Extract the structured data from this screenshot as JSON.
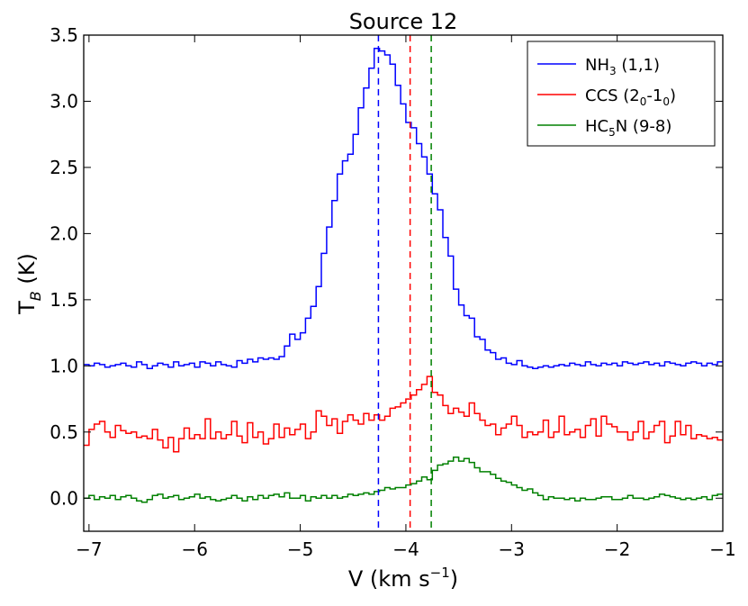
{
  "chart_data": {
    "type": "line",
    "title": "Source 12",
    "xlabel": "V (km s",
    "xlabel_sup": "−1",
    "xlabel_close": ")",
    "ylabel": "T",
    "ylabel_sub": "B",
    "ylabel_rest": " (K)",
    "xlim": [
      -7.05,
      -1.0
    ],
    "ylim": [
      -0.25,
      3.5
    ],
    "x_ticks": [
      -7,
      -6,
      -5,
      -4,
      -3,
      -2,
      -1
    ],
    "x_tick_labels": [
      "−7",
      "−6",
      "−5",
      "−4",
      "−3",
      "−2",
      "−1"
    ],
    "y_ticks": [
      0.0,
      0.5,
      1.0,
      1.5,
      2.0,
      2.5,
      3.0,
      3.5
    ],
    "y_tick_labels": [
      "0.0",
      "0.5",
      "1.0",
      "1.5",
      "2.0",
      "2.5",
      "3.0",
      "3.5"
    ],
    "grid": false,
    "legend_position": "top-right",
    "step": {
      "x_start": -7.05,
      "dx": 0.05
    },
    "series": [
      {
        "name": "NH3 (1,1)",
        "legend_main": "NH",
        "legend_sub": "3",
        "legend_rest": " (1,1)",
        "color": "#0000ff",
        "values": [
          1.01,
          1.0,
          1.02,
          1.01,
          0.99,
          1.0,
          1.01,
          1.02,
          1.0,
          0.99,
          1.03,
          1.01,
          0.98,
          1.0,
          1.02,
          1.01,
          0.99,
          1.03,
          1.0,
          1.01,
          1.02,
          0.99,
          1.03,
          1.02,
          1.0,
          1.03,
          1.01,
          1.0,
          0.99,
          1.04,
          1.02,
          1.05,
          1.03,
          1.06,
          1.05,
          1.06,
          1.05,
          1.07,
          1.15,
          1.24,
          1.2,
          1.25,
          1.36,
          1.45,
          1.6,
          1.85,
          2.05,
          2.25,
          2.45,
          2.55,
          2.6,
          2.75,
          2.95,
          3.1,
          3.25,
          3.4,
          3.38,
          3.35,
          3.28,
          3.12,
          2.98,
          2.84,
          2.8,
          2.68,
          2.58,
          2.45,
          2.3,
          2.18,
          1.97,
          1.83,
          1.58,
          1.46,
          1.38,
          1.36,
          1.22,
          1.2,
          1.12,
          1.1,
          1.05,
          1.06,
          1.02,
          1.01,
          1.04,
          1.0,
          0.99,
          0.98,
          0.99,
          1.0,
          0.99,
          1.0,
          1.01,
          1.0,
          1.02,
          1.01,
          1.0,
          1.03,
          1.01,
          1.0,
          1.02,
          1.01,
          1.02,
          1.0,
          1.03,
          1.02,
          1.01,
          1.02,
          1.03,
          1.01,
          1.02,
          1.0,
          1.03,
          1.02,
          1.01,
          1.0,
          1.02,
          1.03,
          1.02,
          1.0,
          1.02,
          1.01,
          1.03
        ]
      },
      {
        "name": "CCS (2_0-1_0)",
        "legend_main": "CCS (2",
        "legend_sub": "0",
        "legend_mid": "-1",
        "legend_sub2": "0",
        "legend_rest": ")",
        "color": "#ff0000",
        "values": [
          0.4,
          0.52,
          0.56,
          0.58,
          0.5,
          0.46,
          0.55,
          0.51,
          0.49,
          0.5,
          0.46,
          0.47,
          0.45,
          0.52,
          0.44,
          0.38,
          0.46,
          0.35,
          0.45,
          0.53,
          0.45,
          0.48,
          0.45,
          0.6,
          0.45,
          0.5,
          0.45,
          0.48,
          0.58,
          0.47,
          0.42,
          0.57,
          0.46,
          0.5,
          0.41,
          0.45,
          0.56,
          0.46,
          0.53,
          0.48,
          0.52,
          0.56,
          0.45,
          0.5,
          0.66,
          0.62,
          0.55,
          0.6,
          0.49,
          0.58,
          0.63,
          0.59,
          0.56,
          0.64,
          0.59,
          0.63,
          0.59,
          0.62,
          0.68,
          0.69,
          0.72,
          0.75,
          0.78,
          0.82,
          0.86,
          0.92,
          0.8,
          0.78,
          0.7,
          0.64,
          0.68,
          0.65,
          0.62,
          0.72,
          0.64,
          0.59,
          0.55,
          0.56,
          0.48,
          0.53,
          0.56,
          0.62,
          0.55,
          0.46,
          0.5,
          0.48,
          0.5,
          0.59,
          0.46,
          0.5,
          0.62,
          0.48,
          0.5,
          0.52,
          0.46,
          0.55,
          0.6,
          0.47,
          0.62,
          0.56,
          0.54,
          0.5,
          0.5,
          0.44,
          0.5,
          0.58,
          0.45,
          0.5,
          0.55,
          0.58,
          0.42,
          0.47,
          0.58,
          0.48,
          0.55,
          0.45,
          0.48,
          0.47,
          0.45,
          0.46,
          0.44
        ]
      },
      {
        "name": "HC5N (9-8)",
        "legend_main": "HC",
        "legend_sub": "5",
        "legend_rest": "N (9-8)",
        "color": "#008000",
        "values": [
          0.0,
          0.02,
          -0.01,
          0.01,
          0.0,
          0.02,
          -0.01,
          0.01,
          0.02,
          0.0,
          -0.02,
          -0.03,
          -0.01,
          0.02,
          0.03,
          0.0,
          0.01,
          0.02,
          -0.01,
          0.0,
          0.01,
          0.03,
          0.0,
          0.01,
          -0.01,
          -0.02,
          -0.01,
          0.0,
          0.02,
          0.0,
          -0.02,
          0.01,
          -0.01,
          0.02,
          0.0,
          0.02,
          0.03,
          0.01,
          0.04,
          0.0,
          0.0,
          0.02,
          -0.02,
          0.01,
          0.0,
          0.02,
          0.0,
          0.02,
          0.0,
          0.01,
          0.03,
          0.02,
          0.03,
          0.04,
          0.03,
          0.05,
          0.06,
          0.08,
          0.07,
          0.08,
          0.08,
          0.1,
          0.11,
          0.13,
          0.16,
          0.14,
          0.21,
          0.25,
          0.26,
          0.28,
          0.31,
          0.28,
          0.3,
          0.27,
          0.23,
          0.2,
          0.2,
          0.18,
          0.15,
          0.13,
          0.12,
          0.1,
          0.08,
          0.06,
          0.07,
          0.04,
          0.02,
          -0.01,
          0.01,
          0.0,
          0.0,
          -0.01,
          0.0,
          -0.02,
          0.0,
          -0.01,
          -0.01,
          0.0,
          0.01,
          0.01,
          -0.01,
          -0.01,
          0.0,
          0.02,
          0.0,
          0.0,
          -0.01,
          0.0,
          0.01,
          0.03,
          0.02,
          0.01,
          0.0,
          -0.01,
          0.0,
          -0.01,
          0.0,
          0.01,
          -0.01,
          0.02,
          0.03
        ]
      }
    ],
    "vlines": [
      {
        "x": -4.26,
        "color": "#0000ff",
        "series": "NH3 (1,1)"
      },
      {
        "x": -3.96,
        "color": "#ff0000",
        "series": "CCS (2_0-1_0)"
      },
      {
        "x": -3.76,
        "color": "#008000",
        "series": "HC5N (9-8)"
      }
    ]
  }
}
